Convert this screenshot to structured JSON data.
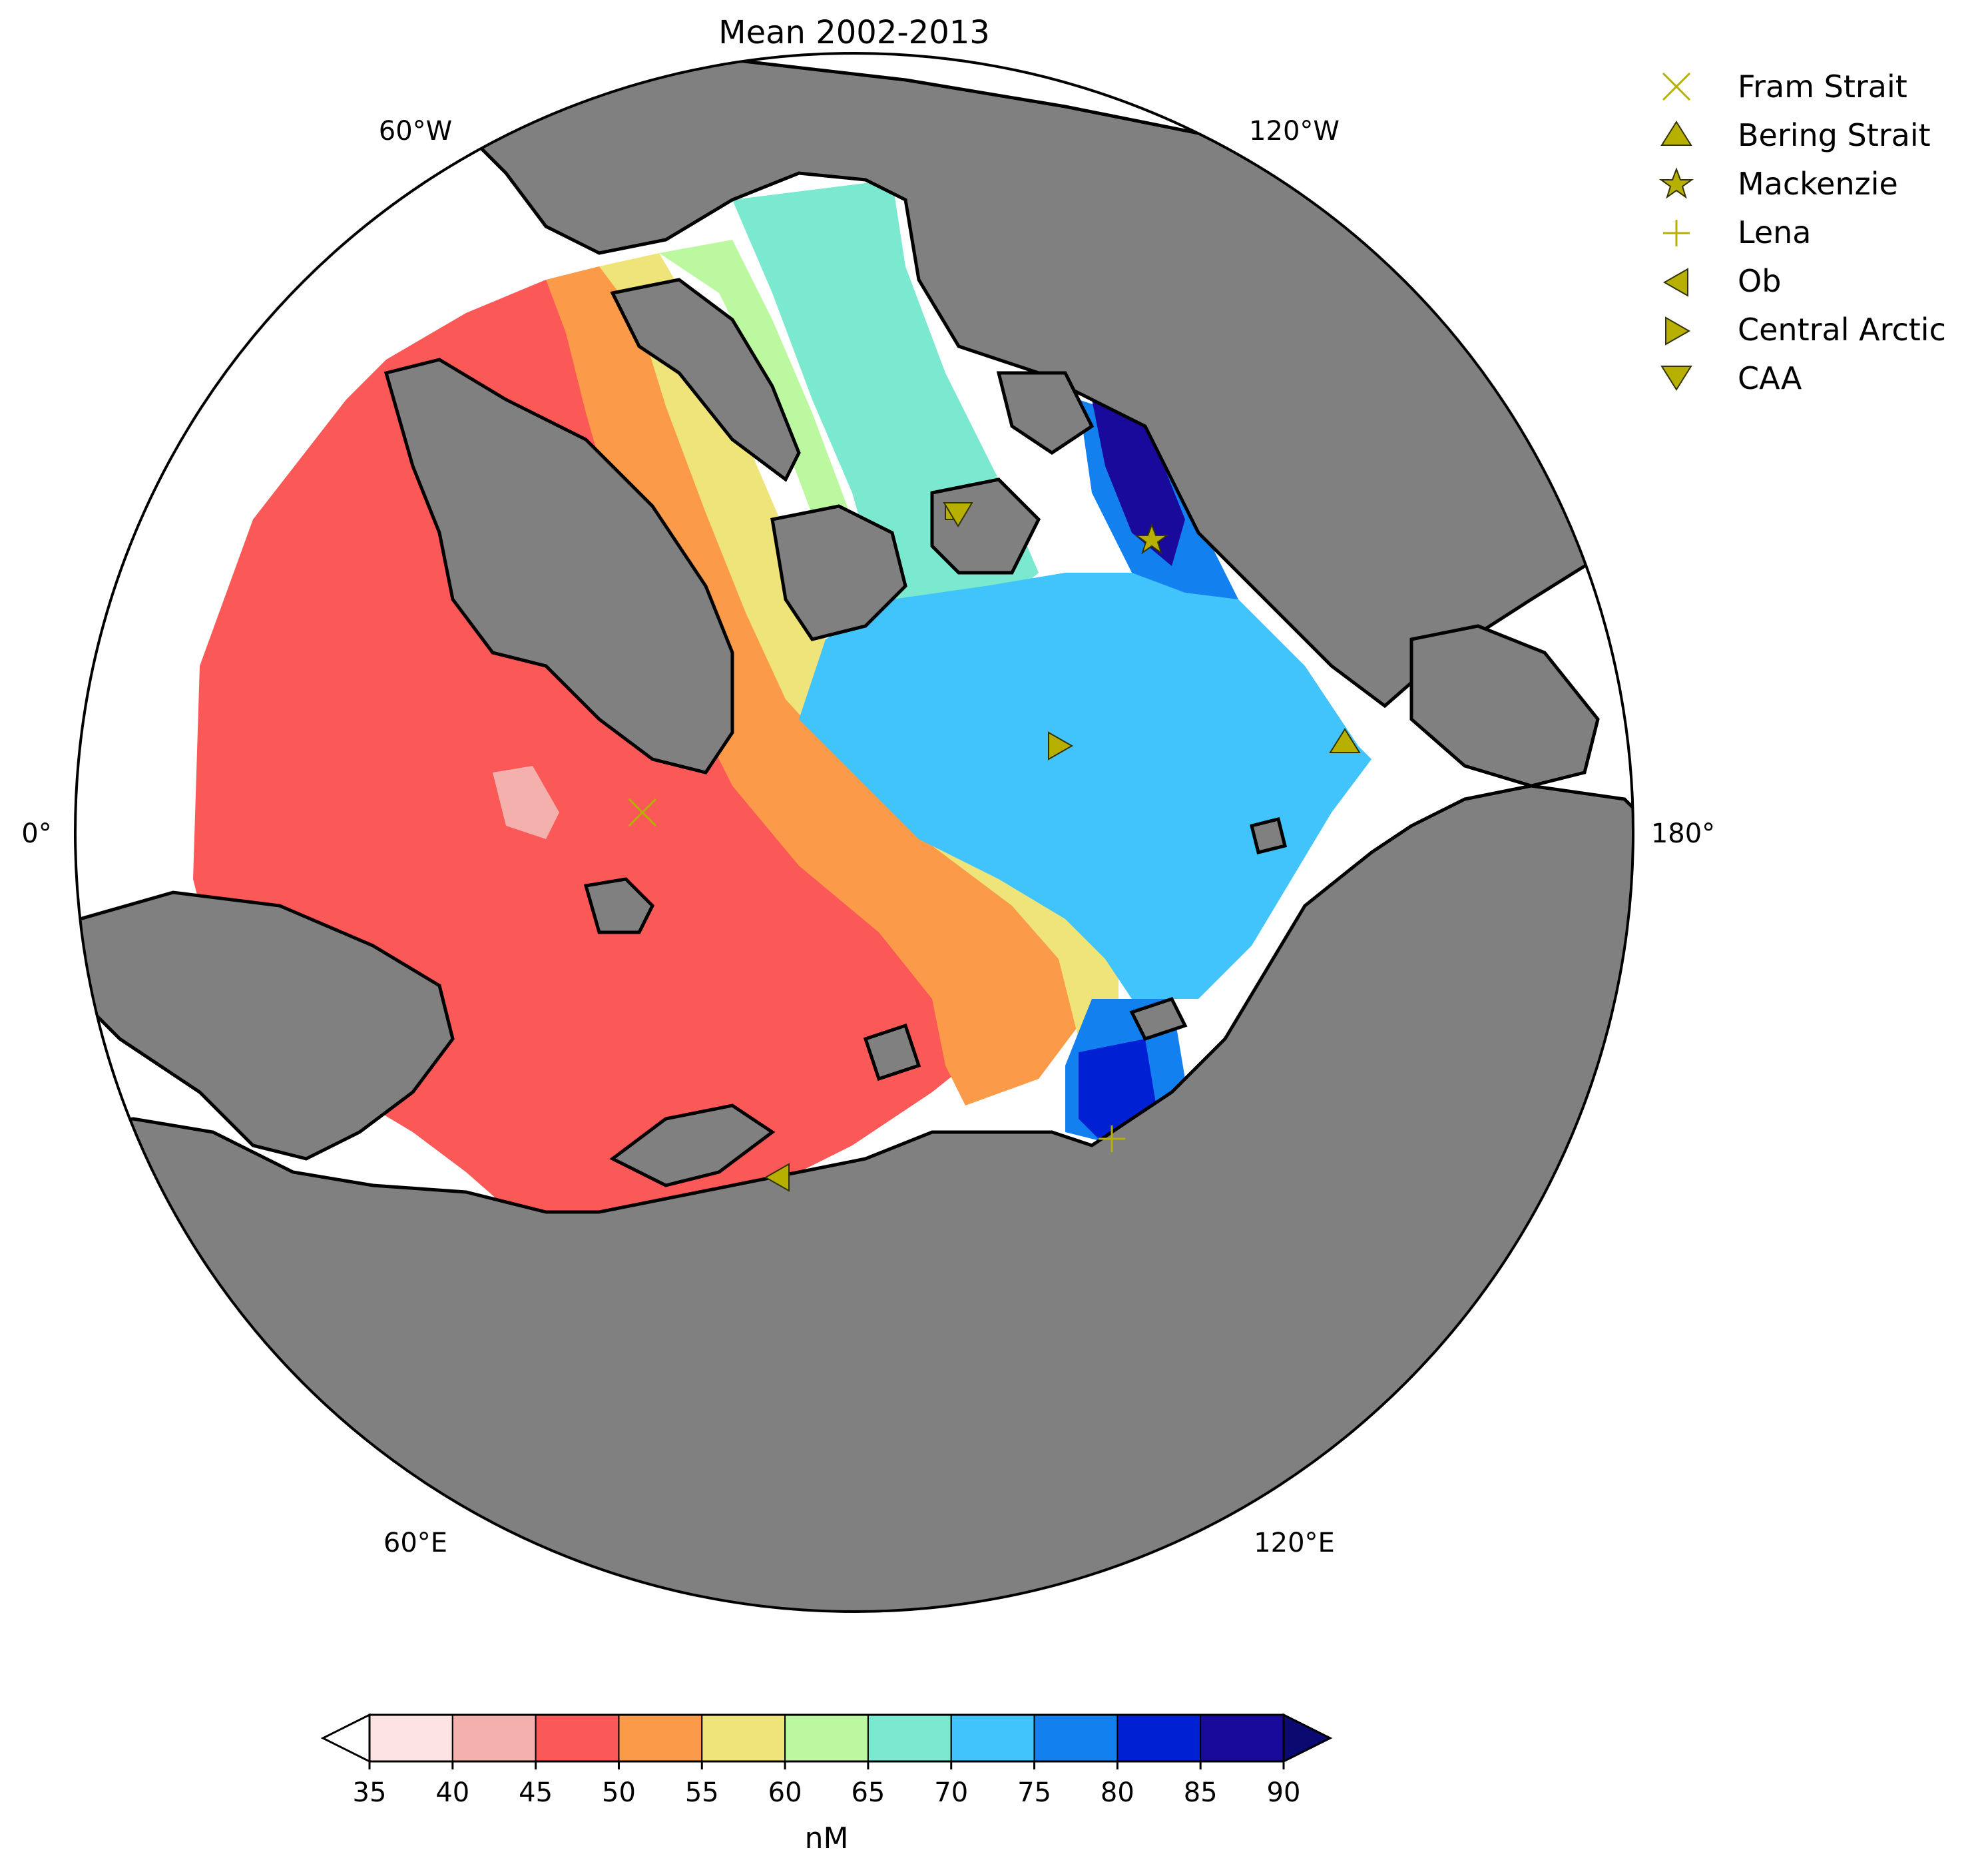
{
  "title": "Mean 2002-2013",
  "meridian_labels": {
    "w60": "60°W",
    "w120": "120°W",
    "zero": "0°",
    "e180": "180°",
    "e60": "60°E",
    "e120": "120°E"
  },
  "legend": {
    "items": [
      {
        "label": "Fram Strait",
        "marker": "x-marker"
      },
      {
        "label": "Bering Strait",
        "marker": "triangle-up-marker"
      },
      {
        "label": "Mackenzie",
        "marker": "star-marker"
      },
      {
        "label": "Lena",
        "marker": "plus-marker"
      },
      {
        "label": "Ob",
        "marker": "triangle-left-marker"
      },
      {
        "label": "Central Arctic",
        "marker": "triangle-right-marker"
      },
      {
        "label": "CAA",
        "marker": "triangle-down-marker"
      }
    ],
    "marker_color": "#b8b000"
  },
  "colorbar": {
    "unit": "nM",
    "ticks": [
      "35",
      "40",
      "45",
      "50",
      "55",
      "60",
      "65",
      "70",
      "75",
      "80",
      "85",
      "90"
    ],
    "bin_colors": [
      "#fde3e3",
      "#f4b0ac",
      "#fb5858",
      "#fb9a48",
      "#efe47a",
      "#bcf8a0",
      "#7ae9d0",
      "#40c4fb",
      "#1380f0",
      "#0020d4",
      "#1a0a9c"
    ],
    "under_color": "#ffffff",
    "over_color": "#0a0a70"
  },
  "colors": {
    "land": "#808080",
    "coast": "#000000",
    "ocean_white": "#ffffff"
  }
}
